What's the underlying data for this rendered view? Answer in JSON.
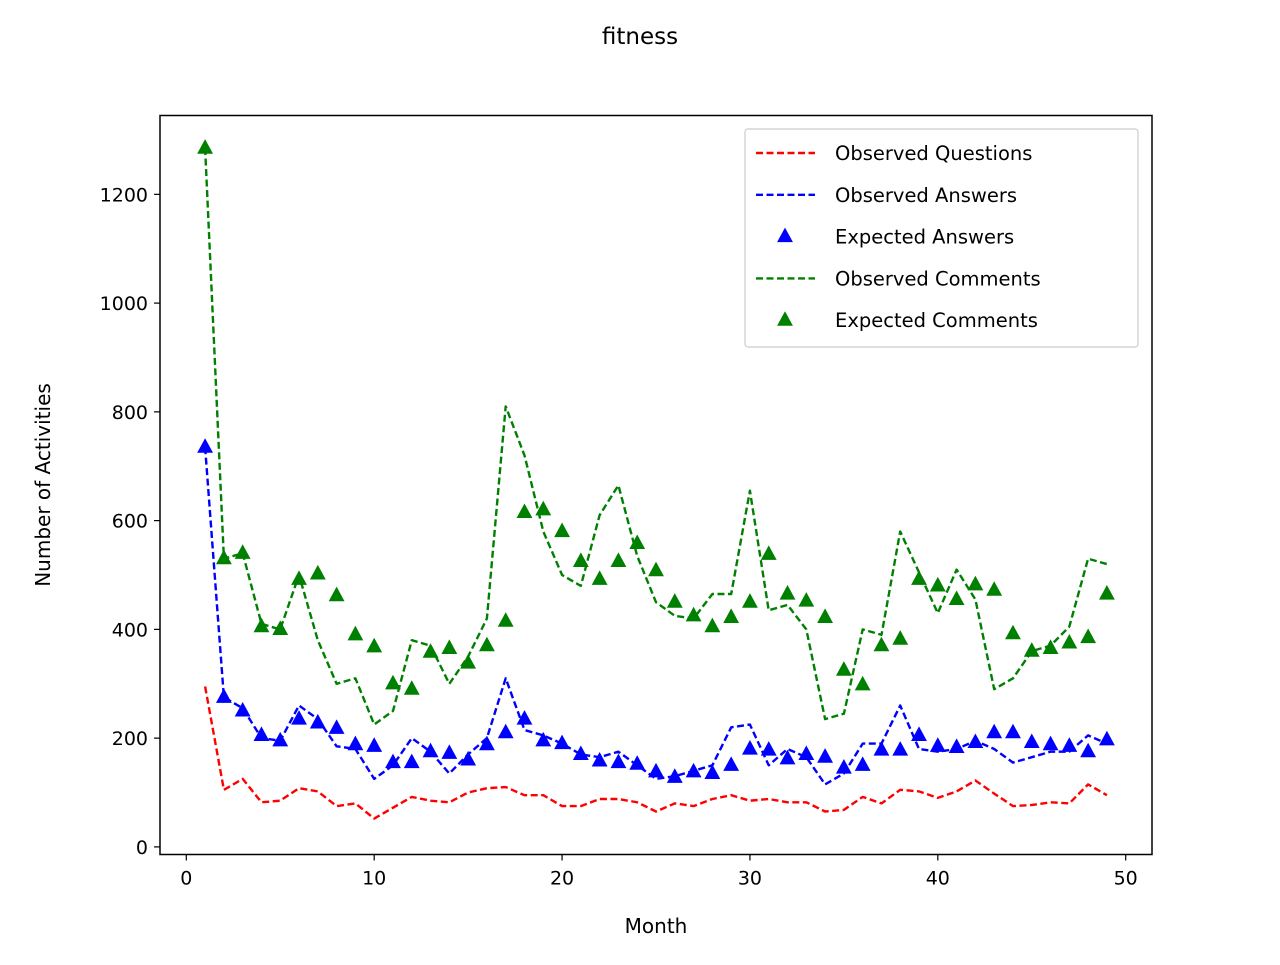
{
  "chart_data": {
    "type": "line",
    "title": "fitness",
    "xlabel": "Month",
    "ylabel": "Number of Activities",
    "xlim": [
      -1.4,
      51.4
    ],
    "ylim": [
      -14,
      1345
    ],
    "xticks": [
      0,
      10,
      20,
      30,
      40,
      50
    ],
    "yticks": [
      0,
      200,
      400,
      600,
      800,
      1000,
      1200
    ],
    "legend_position": "upper right",
    "x": [
      1,
      2,
      3,
      4,
      5,
      6,
      7,
      8,
      9,
      10,
      11,
      12,
      13,
      14,
      15,
      16,
      17,
      18,
      19,
      20,
      21,
      22,
      23,
      24,
      25,
      26,
      27,
      28,
      29,
      30,
      31,
      32,
      33,
      34,
      35,
      36,
      37,
      38,
      39,
      40,
      41,
      42,
      43,
      44,
      45,
      46,
      47,
      48,
      49
    ],
    "series": [
      {
        "name": "Observed Questions",
        "style": "dashed-line",
        "color": "#ff0000",
        "values": [
          295,
          105,
          125,
          82,
          85,
          108,
          102,
          75,
          80,
          52,
          72,
          92,
          85,
          82,
          100,
          108,
          110,
          95,
          95,
          75,
          75,
          88,
          88,
          82,
          65,
          80,
          75,
          88,
          95,
          85,
          88,
          82,
          82,
          65,
          68,
          92,
          80,
          105,
          102,
          90,
          102,
          122,
          98,
          75,
          77,
          82,
          80,
          115,
          95
        ]
      },
      {
        "name": "Observed Answers",
        "style": "dashed-line",
        "color": "#0000ff",
        "values": [
          735,
          275,
          255,
          200,
          195,
          260,
          235,
          185,
          180,
          125,
          150,
          200,
          175,
          135,
          170,
          200,
          310,
          215,
          205,
          190,
          170,
          165,
          175,
          150,
          125,
          130,
          140,
          150,
          220,
          225,
          150,
          180,
          165,
          115,
          135,
          190,
          190,
          260,
          180,
          175,
          180,
          195,
          180,
          155,
          165,
          175,
          175,
          205,
          190
        ]
      },
      {
        "name": "Expected Answers",
        "style": "triangle-markers",
        "color": "#0000ff",
        "values": [
          735,
          275,
          250,
          205,
          195,
          235,
          228,
          218,
          188,
          185,
          155,
          155,
          175,
          172,
          160,
          188,
          210,
          235,
          195,
          190,
          170,
          158,
          155,
          152,
          138,
          128,
          138,
          135,
          150,
          180,
          178,
          162,
          170,
          165,
          145,
          150,
          178,
          178,
          205,
          185,
          183,
          192,
          210,
          210,
          192,
          188,
          185,
          175,
          197
        ]
      },
      {
        "name": "Observed Comments",
        "style": "dashed-line",
        "color": "#008000",
        "values": [
          1285,
          530,
          540,
          410,
          400,
          500,
          380,
          300,
          310,
          225,
          250,
          380,
          370,
          300,
          350,
          420,
          810,
          720,
          580,
          500,
          480,
          610,
          665,
          535,
          450,
          425,
          420,
          465,
          465,
          655,
          435,
          445,
          400,
          235,
          245,
          400,
          390,
          580,
          505,
          430,
          510,
          455,
          290,
          310,
          360,
          370,
          405,
          530,
          520
        ]
      },
      {
        "name": "Expected Comments",
        "style": "triangle-markers",
        "color": "#008000",
        "values": [
          1285,
          530,
          540,
          405,
          400,
          492,
          502,
          462,
          390,
          368,
          300,
          290,
          358,
          365,
          338,
          370,
          415,
          615,
          620,
          580,
          525,
          492,
          525,
          558,
          508,
          450,
          425,
          405,
          422,
          450,
          538,
          465,
          452,
          422,
          325,
          298,
          370,
          382,
          492,
          480,
          455,
          482,
          472,
          392,
          360,
          365,
          375,
          385,
          465
        ]
      }
    ]
  }
}
